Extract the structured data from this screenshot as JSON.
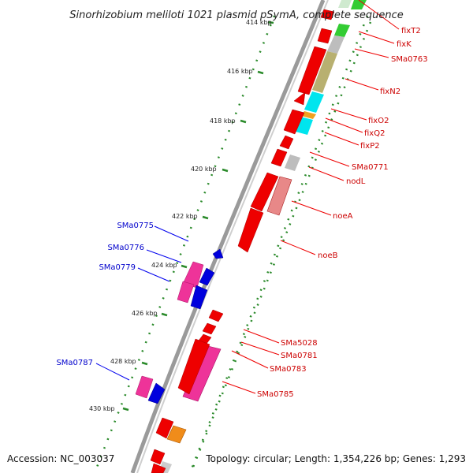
{
  "title": "Sinorhizobium meliloti 1021 plasmid pSymA, complete sequence",
  "accession": "Accession: NC_003037",
  "topology": "Topology: circular; Length: 1,354,226 bp; Genes: 1,293",
  "colors": {
    "forward": "#ee0000",
    "pink": "#ee3399",
    "blue": "#0000dd",
    "backbone": "#888888",
    "tick": "#2a8a2a"
  },
  "kbp_labels": [
    "414 kbp",
    "416 kbp",
    "418 kbp",
    "420 kbp",
    "422 kbp",
    "424 kbp",
    "426 kbp",
    "428 kbp",
    "430 kbp"
  ],
  "genes_right": [
    {
      "name": "fixT2"
    },
    {
      "name": "fixK"
    },
    {
      "name": "SMa0763"
    },
    {
      "name": "fixN2"
    },
    {
      "name": "fixO2"
    },
    {
      "name": "fixQ2"
    },
    {
      "name": "fixP2"
    },
    {
      "name": "SMa0771"
    },
    {
      "name": "nodL"
    },
    {
      "name": "noeA"
    },
    {
      "name": "noeB"
    },
    {
      "name": "SMa5028"
    },
    {
      "name": "SMa0781"
    },
    {
      "name": "SMa0783"
    },
    {
      "name": "SMa0785"
    }
  ],
  "genes_left": [
    {
      "name": "SMa0775"
    },
    {
      "name": "SMa0776"
    },
    {
      "name": "SMa0779"
    },
    {
      "name": "SMa0787"
    }
  ]
}
